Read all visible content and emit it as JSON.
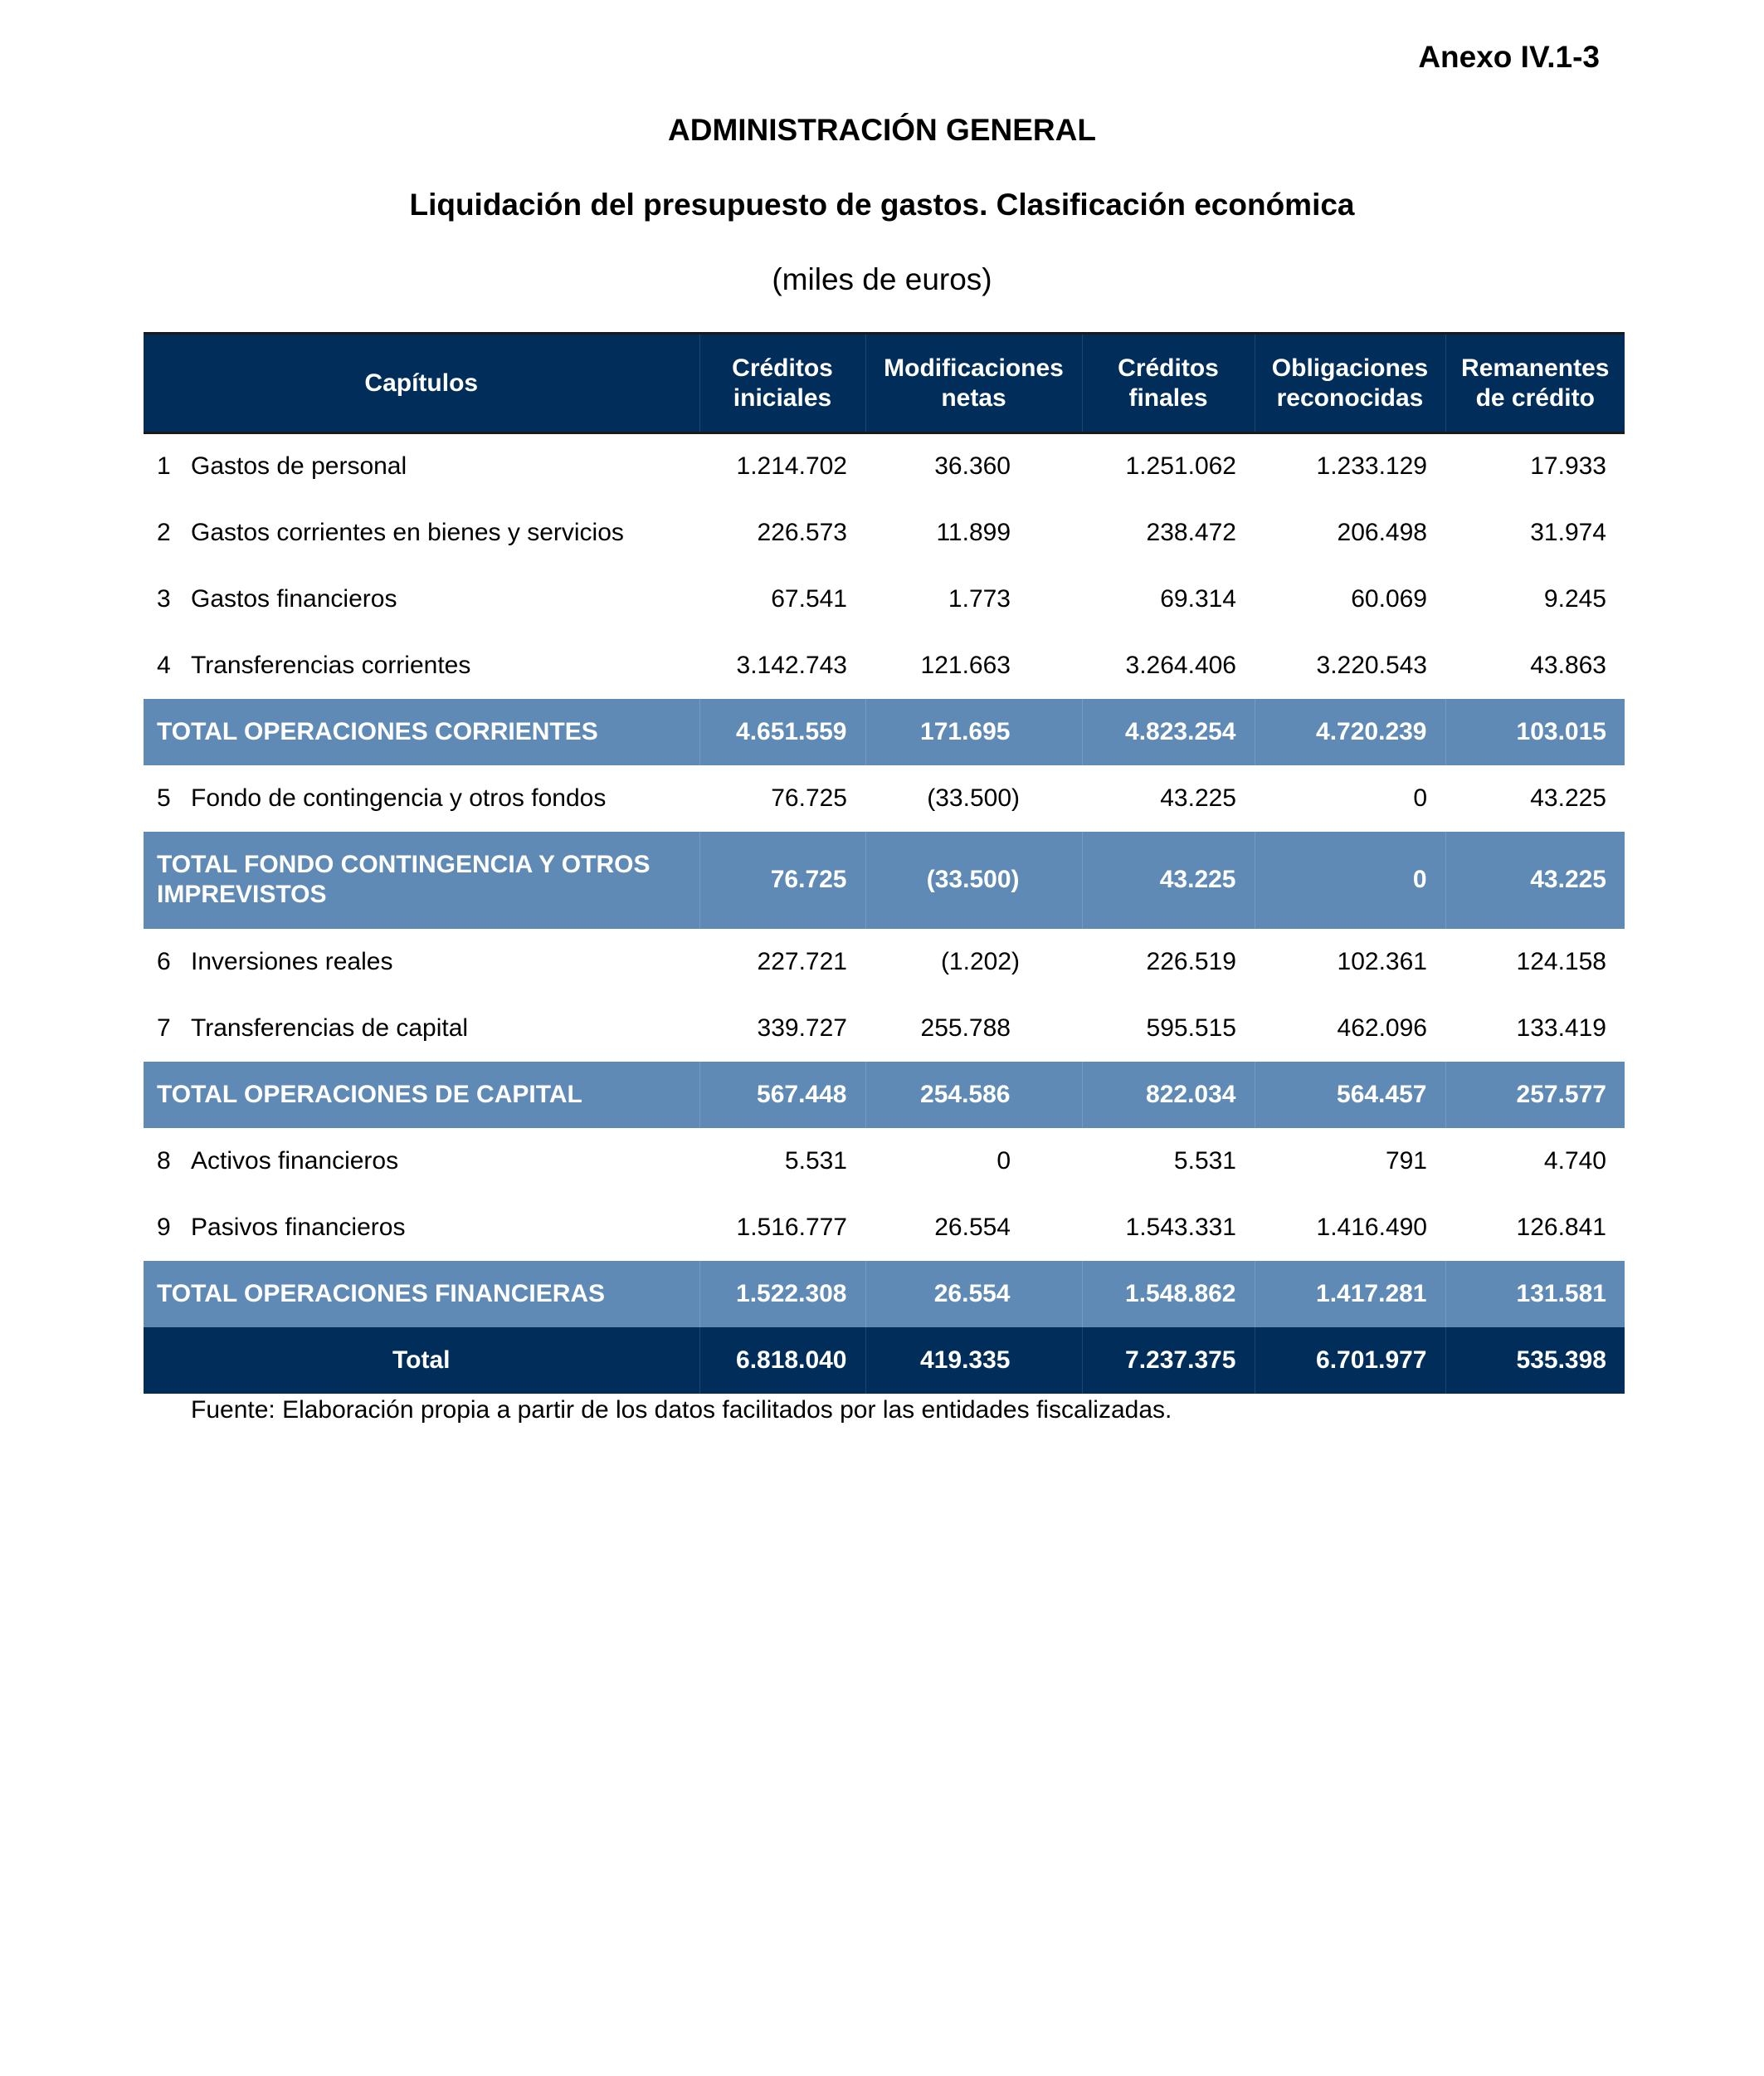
{
  "annex": "Anexo IV.1-3",
  "title": "ADMINISTRACIÓN GENERAL",
  "subtitle": "Liquidación del presupuesto de gastos. Clasificación económica",
  "units": "(miles de euros)",
  "colors": {
    "header_bg": "#012d5a",
    "subtotal_bg": "#5f8ab5",
    "text_on_dark": "#ffffff"
  },
  "table": {
    "headers": [
      "Capítulos",
      "Créditos iniciales",
      "Modificaciones netas",
      "Créditos finales",
      "Obligaciones reconocidas",
      "Remanentes de crédito"
    ],
    "rows": [
      {
        "type": "item",
        "num": "1",
        "label": "Gastos de personal",
        "values": [
          "1.214.702",
          "36.360",
          "1.251.062",
          "1.233.129",
          "17.933"
        ]
      },
      {
        "type": "item",
        "num": "2",
        "label": "Gastos corrientes en bienes y servicios",
        "values": [
          "226.573",
          "11.899",
          "238.472",
          "206.498",
          "31.974"
        ]
      },
      {
        "type": "item",
        "num": "3",
        "label": "Gastos financieros",
        "values": [
          "67.541",
          "1.773",
          "69.314",
          "60.069",
          "9.245"
        ]
      },
      {
        "type": "item",
        "num": "4",
        "label": "Transferencias corrientes",
        "values": [
          "3.142.743",
          "121.663",
          "3.264.406",
          "3.220.543",
          "43.863"
        ]
      },
      {
        "type": "subtotal",
        "label": "TOTAL OPERACIONES CORRIENTES",
        "values": [
          "4.651.559",
          "171.695",
          "4.823.254",
          "4.720.239",
          "103.015"
        ]
      },
      {
        "type": "item",
        "num": "5",
        "label": "Fondo de contingencia y otros fondos",
        "values": [
          "76.725",
          "(33.500)",
          "43.225",
          "0",
          "43.225"
        ]
      },
      {
        "type": "subtotal",
        "tall": true,
        "label": "TOTAL FONDO CONTINGENCIA Y OTROS IMPREVISTOS",
        "values": [
          "76.725",
          "(33.500)",
          "43.225",
          "0",
          "43.225"
        ]
      },
      {
        "type": "item",
        "num": "6",
        "label": "Inversiones reales",
        "values": [
          "227.721",
          "(1.202)",
          "226.519",
          "102.361",
          "124.158"
        ]
      },
      {
        "type": "item",
        "num": "7",
        "label": "Transferencias de capital",
        "values": [
          "339.727",
          "255.788",
          "595.515",
          "462.096",
          "133.419"
        ]
      },
      {
        "type": "subtotal",
        "label": "TOTAL OPERACIONES DE CAPITAL",
        "values": [
          "567.448",
          "254.586",
          "822.034",
          "564.457",
          "257.577"
        ]
      },
      {
        "type": "item",
        "num": "8",
        "label": "Activos financieros",
        "values": [
          "5.531",
          "0",
          "5.531",
          "791",
          "4.740"
        ]
      },
      {
        "type": "item",
        "num": "9",
        "label": "Pasivos financieros",
        "values": [
          "1.516.777",
          "26.554",
          "1.543.331",
          "1.416.490",
          "126.841"
        ]
      },
      {
        "type": "subtotal",
        "label": "TOTAL OPERACIONES FINANCIERAS",
        "values": [
          "1.522.308",
          "26.554",
          "1.548.862",
          "1.417.281",
          "131.581"
        ]
      },
      {
        "type": "grand",
        "label": "Total",
        "values": [
          "6.818.040",
          "419.335",
          "7.237.375",
          "6.701.977",
          "535.398"
        ]
      }
    ]
  },
  "source": "Fuente: Elaboración propia a partir de los datos facilitados por las entidades fiscalizadas."
}
